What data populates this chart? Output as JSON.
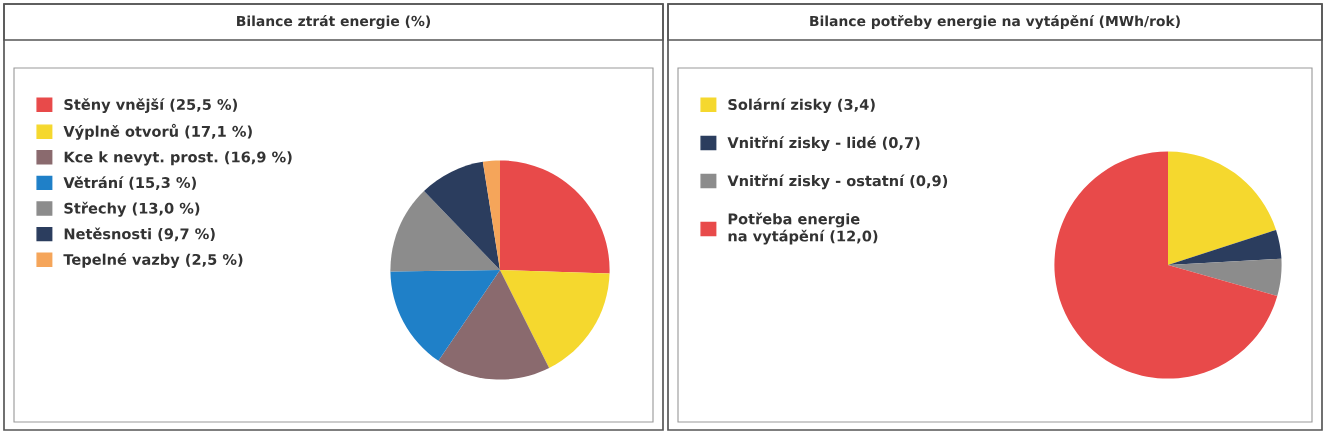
{
  "chart_data": [
    {
      "type": "pie",
      "title": "Bilance ztrát energie (%)",
      "legend": "left",
      "categories": [
        "Stěny vnější (25,5 %)",
        "Výplně otvorů (17,1 %)",
        "Kce k nevyt. prost. (16,9 %)",
        "Větrání (15,3 %)",
        "Střechy (13,0 %)",
        "Netěsnosti (9,7 %)",
        "Tepelné vazby (2,5 %)"
      ],
      "values": [
        25.5,
        17.1,
        16.9,
        15.3,
        13.0,
        9.7,
        2.5
      ],
      "colors": [
        "#e84a4a",
        "#f5d82e",
        "#8a6a6e",
        "#1f80c8",
        "#8c8c8c",
        "#2b3d5e",
        "#f5a55a"
      ]
    },
    {
      "type": "pie",
      "title": "Bilance potřeby energie na vytápění (MWh/rok)",
      "legend": "left",
      "categories": [
        "Solární zisky (3,4)",
        "Vnitřní zisky - lidé (0,7)",
        "Vnitřní zisky - ostatní (0,9)",
        "Potřeba energie\nna vytápění (12,0)"
      ],
      "values": [
        3.4,
        0.7,
        0.9,
        12.0
      ],
      "colors": [
        "#f5d82e",
        "#2b3d5e",
        "#8c8c8c",
        "#e84a4a"
      ]
    }
  ]
}
